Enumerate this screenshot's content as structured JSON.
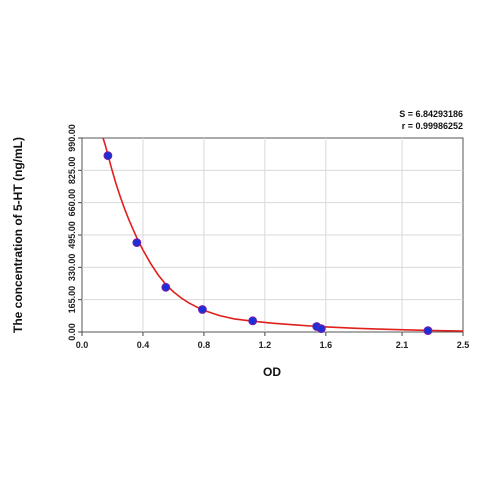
{
  "chart_data": {
    "type": "scatter",
    "xlabel": "OD",
    "ylabel": "The concentration of 5-HT (ng/mL)",
    "xlim": [
      0,
      2.5
    ],
    "ylim": [
      0,
      990
    ],
    "x_ticks": [
      "0.0",
      "0.4",
      "0.8",
      "1.2",
      "1.6",
      "2.1",
      "2.5"
    ],
    "y_ticks": [
      "0.00",
      "165.00",
      "330.00",
      "495.00",
      "660.00",
      "825.00",
      "990.00"
    ],
    "grid": true,
    "annotations": {
      "s_value": "S = 6.84293186",
      "r_value": "r = 0.99986252"
    },
    "series": [
      {
        "points": [
          {
            "x": 0.17,
            "y": 900
          },
          {
            "x": 0.36,
            "y": 456
          },
          {
            "x": 0.55,
            "y": 228
          },
          {
            "x": 0.79,
            "y": 115
          },
          {
            "x": 1.12,
            "y": 57
          },
          {
            "x": 1.54,
            "y": 28
          },
          {
            "x": 1.57,
            "y": 17
          },
          {
            "x": 2.27,
            "y": 7
          }
        ]
      }
    ],
    "fit_curve": {
      "x": [
        0.13,
        0.15,
        0.17,
        0.19,
        0.22,
        0.25,
        0.28,
        0.31,
        0.34,
        0.36,
        0.4,
        0.45,
        0.5,
        0.55,
        0.6,
        0.65,
        0.7,
        0.79,
        0.9,
        1.0,
        1.12,
        1.25,
        1.4,
        1.55,
        1.57,
        1.8,
        2.0,
        2.27,
        2.5
      ],
      "y": [
        1010,
        960,
        905,
        845,
        765,
        693,
        627,
        569,
        515,
        480,
        418,
        350,
        291,
        243,
        205,
        174,
        149,
        113,
        84,
        67,
        55,
        45,
        36,
        28,
        27,
        19,
        14,
        8,
        5
      ]
    },
    "colors": {
      "curve": "#e0201c",
      "point_fill": "#1a2fd6",
      "point_stroke": "#6a1fb0",
      "grid": "#d9d9d9",
      "axis": "#444444"
    }
  }
}
